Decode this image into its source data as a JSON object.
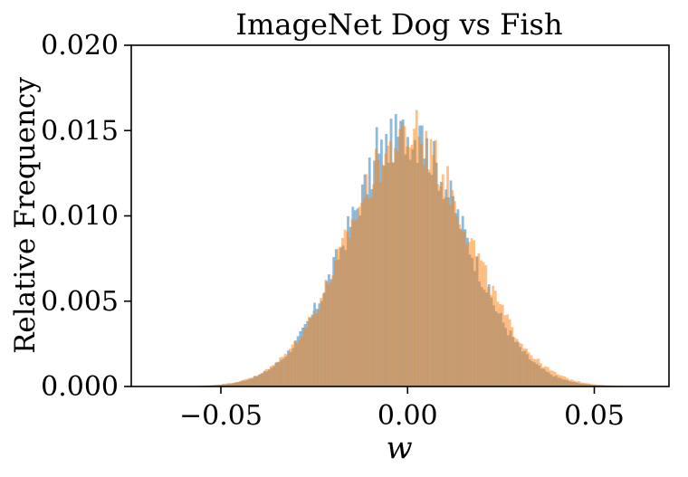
{
  "chart_data": {
    "type": "bar",
    "title": "ImageNet Dog vs Fish",
    "xlabel": "w",
    "ylabel": "Relative Frequency",
    "xlim": [
      -0.074,
      0.07
    ],
    "ylim": [
      0,
      0.02
    ],
    "x_ticks": [
      {
        "value": -0.05,
        "label": "−0.05"
      },
      {
        "value": 0.0,
        "label": "0.00"
      },
      {
        "value": 0.05,
        "label": "0.05"
      }
    ],
    "y_ticks": [
      {
        "value": 0.0,
        "label": "0.000"
      },
      {
        "value": 0.005,
        "label": "0.005"
      },
      {
        "value": 0.01,
        "label": "0.010"
      },
      {
        "value": 0.015,
        "label": "0.015"
      },
      {
        "value": 0.02,
        "label": "0.020"
      }
    ],
    "grid": false,
    "legend": "none",
    "bin_width": 0.00064,
    "series": [
      {
        "color": "#1f77b4",
        "alpha": 0.5,
        "distribution": {
          "mean": -0.0005,
          "std": 0.0158,
          "peak": 0.0148
        },
        "range": [
          -0.063,
          0.062
        ],
        "highlights": [
          {
            "x": -0.0085,
            "y": 0.0152
          },
          {
            "x": -0.0045,
            "y": 0.0157
          },
          {
            "x": 0.0035,
            "y": 0.0153
          }
        ]
      },
      {
        "color": "#ff7f0e",
        "alpha": 0.5,
        "distribution": {
          "mean": 0.0002,
          "std": 0.0163,
          "peak": 0.0146
        },
        "range": [
          -0.06,
          0.064
        ],
        "highlights": [
          {
            "x": 0.0025,
            "y": 0.0162
          },
          {
            "x": 0.006,
            "y": 0.0145
          },
          {
            "x": -0.002,
            "y": 0.0151
          }
        ]
      }
    ]
  }
}
